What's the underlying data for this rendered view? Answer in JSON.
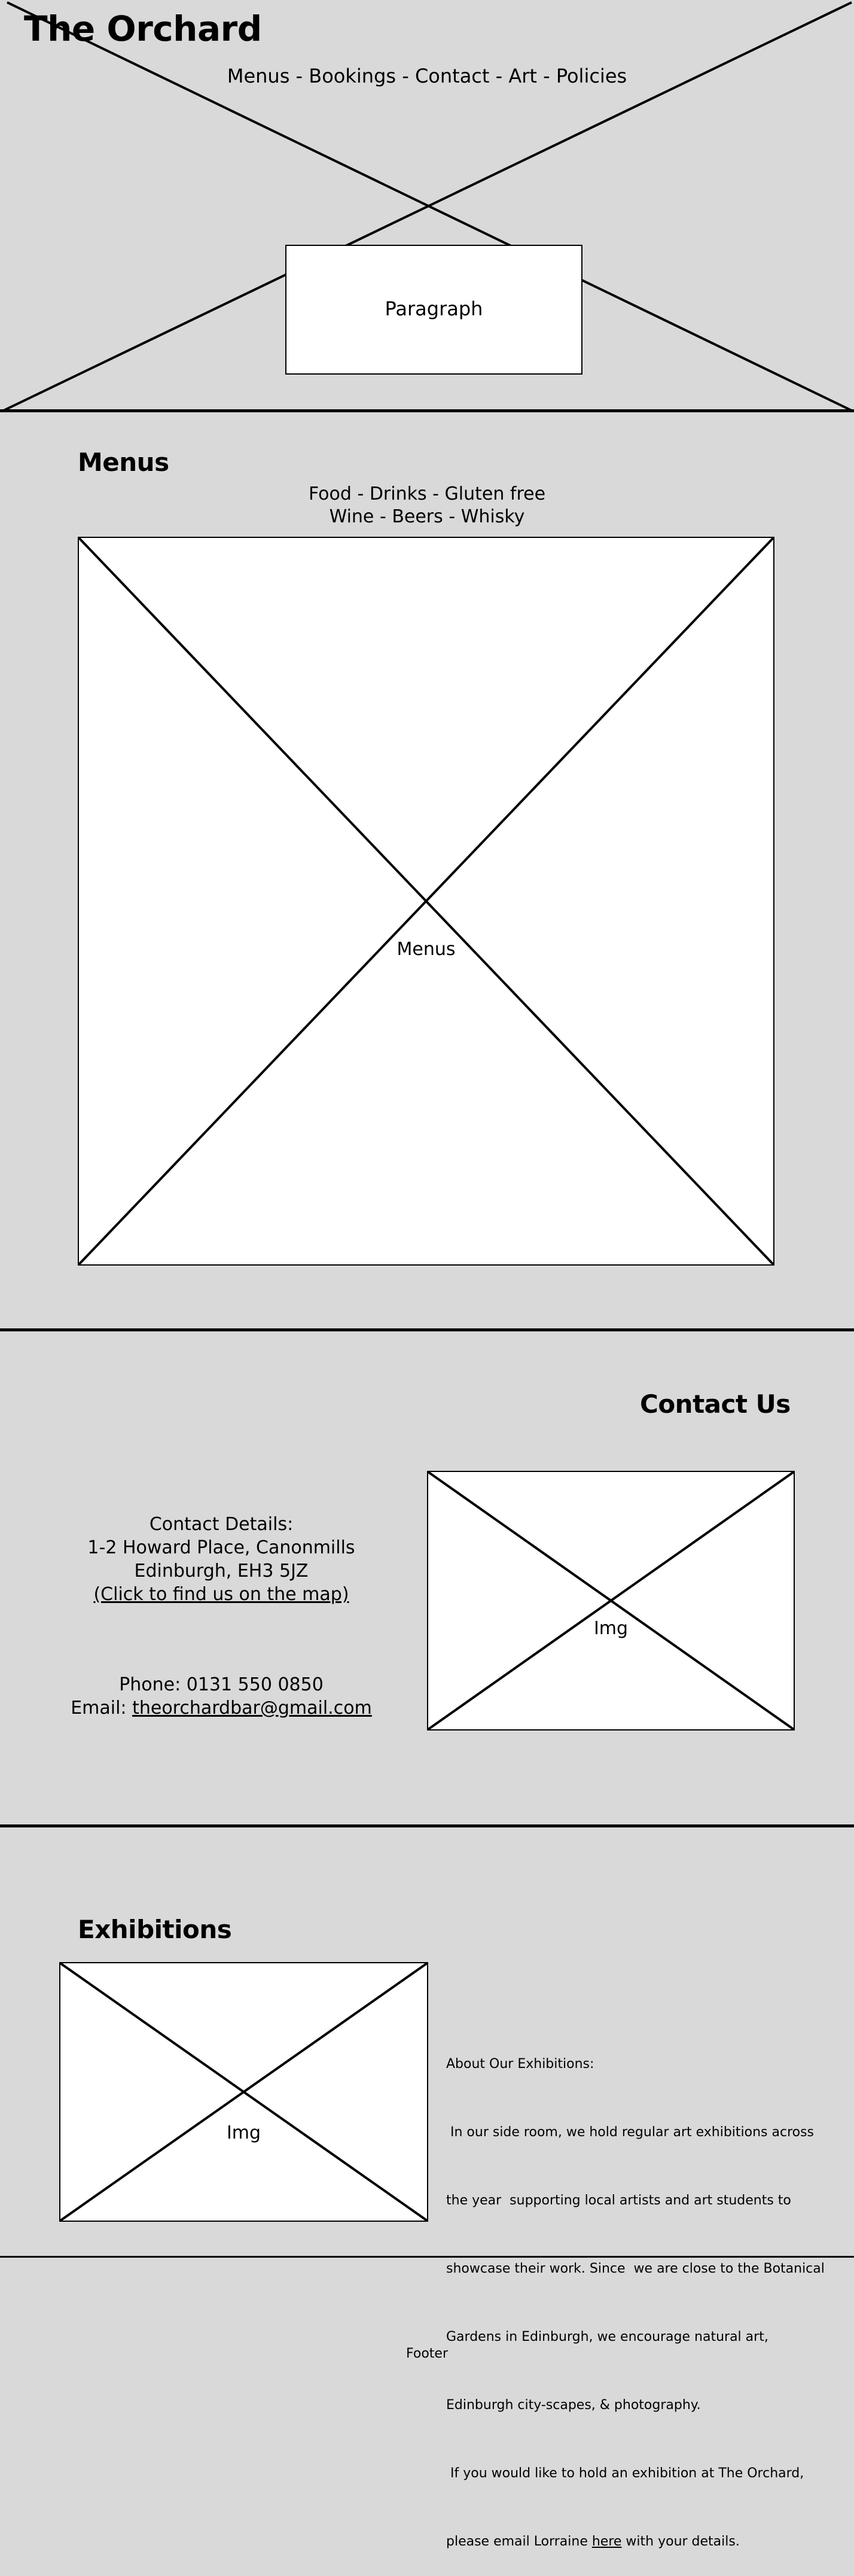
{
  "header": {
    "site_title": "The Orchard",
    "nav": [
      "Menus",
      "Bookings",
      "Contact",
      "Art",
      "Policies"
    ],
    "nav_separator": "-",
    "hero_label": "Paragraph"
  },
  "menus": {
    "heading": "Menus",
    "categories_line1": [
      "Food",
      "Drinks",
      "Gluten free"
    ],
    "categories_line2": [
      "Wine",
      "Beers",
      "Whisky"
    ],
    "separator": "-",
    "image_label": "Menus"
  },
  "contact": {
    "heading": "Contact Us",
    "details_title": "Contact Details:",
    "address_line1": "1-2 Howard Place, Canonmills",
    "address_line2": "Edinburgh, EH3 5JZ",
    "map_link": "(Click to find us on the map)",
    "phone": "Phone: 0131 550 0850",
    "email_label": "Email:",
    "email": "theorchardbar@gmail.com",
    "image_label": "Img"
  },
  "exhibitions": {
    "heading": "Exhibitions",
    "image_label": "Img",
    "about_title": "About Our Exhibitions:",
    "about_lines": [
      " In our side room, we hold regular art exhibitions across",
      "the year  supporting local artists and art students to",
      "showcase their work. Since  we are close to the Botanical",
      "Gardens in Edinburgh, we encourage natural art,",
      "Edinburgh city-scapes, & photography.",
      " If you would like to hold an exhibition at The Orchard,"
    ],
    "email_prefix": "please email Lorraine ",
    "email_link": "here",
    "email_suffix": " with your details."
  },
  "footer": {
    "label": "Footer"
  }
}
